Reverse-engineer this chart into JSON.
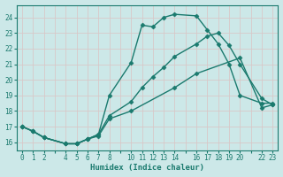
{
  "xlabel": "Humidex (Indice chaleur)",
  "bg_color": "#cce8e8",
  "grid_color": "#c8d8d8",
  "line_color": "#1a7a6e",
  "ylim": [
    15.5,
    24.8
  ],
  "xlim": [
    -0.5,
    23.5
  ],
  "yticks": [
    16,
    17,
    18,
    19,
    20,
    21,
    22,
    23,
    24
  ],
  "xtick_positions": [
    0,
    1,
    2,
    4,
    5,
    6,
    7,
    8,
    10,
    11,
    12,
    13,
    14,
    16,
    17,
    18,
    19,
    20,
    22,
    23
  ],
  "xtick_labels": [
    "0",
    "1",
    "2",
    "4",
    "5",
    "6",
    "7",
    "8",
    "10",
    "11",
    "12",
    "13",
    "14",
    "16",
    "17",
    "18",
    "19",
    "20",
    "22",
    "23"
  ],
  "line1_x": [
    0,
    1,
    2,
    4,
    5,
    6,
    7,
    8,
    10,
    11,
    12,
    13,
    14,
    16,
    17,
    18,
    19,
    20,
    22,
    23
  ],
  "line1_y": [
    17.0,
    16.7,
    16.3,
    15.9,
    15.9,
    16.2,
    16.5,
    19.0,
    21.1,
    23.5,
    23.4,
    24.0,
    24.2,
    24.1,
    23.2,
    22.3,
    21.0,
    19.0,
    18.5,
    18.5
  ],
  "line2_x": [
    0,
    1,
    2,
    4,
    5,
    6,
    7,
    8,
    10,
    11,
    12,
    13,
    14,
    16,
    17,
    18,
    19,
    20,
    22,
    23
  ],
  "line2_y": [
    17.0,
    16.7,
    16.3,
    15.9,
    15.9,
    16.2,
    16.5,
    17.7,
    18.6,
    19.5,
    20.2,
    20.8,
    21.5,
    22.3,
    22.8,
    23.0,
    22.2,
    21.0,
    18.8,
    18.4
  ],
  "line3_x": [
    0,
    1,
    2,
    4,
    5,
    6,
    7,
    8,
    10,
    14,
    16,
    20,
    22,
    23
  ],
  "line3_y": [
    17.0,
    16.7,
    16.3,
    15.9,
    15.9,
    16.2,
    16.4,
    17.5,
    18.0,
    19.5,
    20.4,
    21.4,
    18.2,
    18.4
  ],
  "marker_size": 2.5,
  "line_width": 1.0,
  "font_family": "monospace",
  "tick_fontsize": 5.5,
  "xlabel_fontsize": 6.5
}
